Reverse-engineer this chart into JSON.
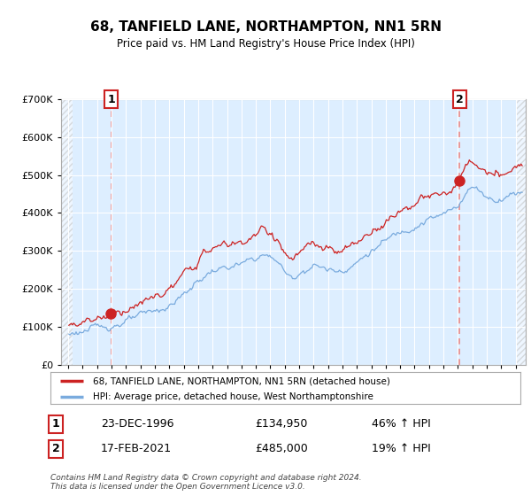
{
  "title": "68, TANFIELD LANE, NORTHAMPTON, NN1 5RN",
  "subtitle": "Price paid vs. HM Land Registry's House Price Index (HPI)",
  "legend_line1": "68, TANFIELD LANE, NORTHAMPTON, NN1 5RN (detached house)",
  "legend_line2": "HPI: Average price, detached house, West Northamptonshire",
  "transaction1_date": "23-DEC-1996",
  "transaction1_price": 134950,
  "transaction1_pct": "46% ↑ HPI",
  "transaction2_date": "17-FEB-2021",
  "transaction2_price": 485000,
  "transaction2_pct": "19% ↑ HPI",
  "footer": "Contains HM Land Registry data © Crown copyright and database right 2024.\nThis data is licensed under the Open Government Licence v3.0.",
  "hpi_color": "#7aabde",
  "property_color": "#cc2222",
  "dot_color": "#cc2222",
  "vline_color": "#e88888",
  "bg_color": "#ddeeff",
  "grid_color": "#ffffff",
  "ylim": [
    0,
    700000
  ],
  "ylabel_ticks": [
    0,
    100000,
    200000,
    300000,
    400000,
    500000,
    600000,
    700000
  ],
  "transaction1_year": 1996.97,
  "transaction2_year": 2021.12,
  "xmin": 1994.0,
  "xmax": 2025.5
}
